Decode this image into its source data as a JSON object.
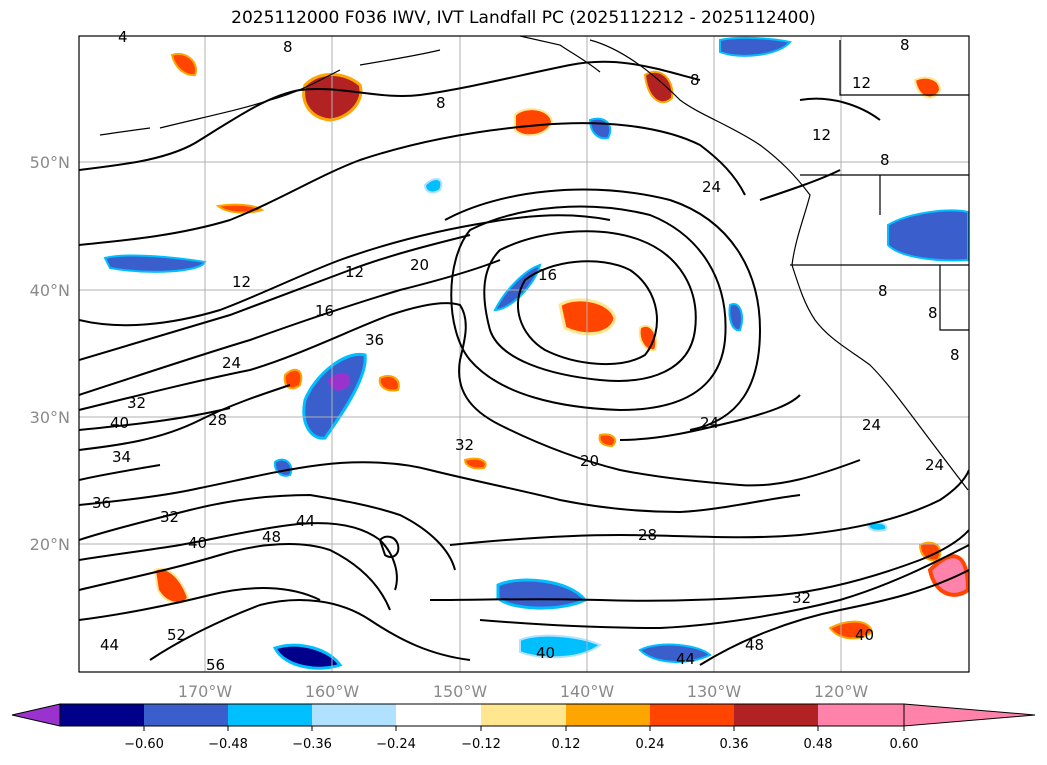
{
  "title": "2025112000 F036 IWV, IVT Landfall PC (2025112212 - 2025112400)",
  "lon_ticks": [
    "170°W",
    "160°W",
    "150°W",
    "140°W",
    "130°W",
    "120°W"
  ],
  "lat_ticks": [
    "50°N",
    "40°N",
    "30°N",
    "20°N"
  ],
  "contour_labels": [
    "4",
    "8",
    "8",
    "8",
    "12",
    "12",
    "12",
    "16",
    "12",
    "20",
    "16",
    "24",
    "24",
    "24",
    "36",
    "40",
    "28",
    "32",
    "20",
    "24",
    "34",
    "36",
    "32",
    "40",
    "32",
    "48",
    "44",
    "52",
    "56",
    "44",
    "40",
    "28",
    "32",
    "44",
    "48",
    "40",
    "24",
    "8",
    "8",
    "8",
    "8",
    "8"
  ],
  "colorbar": {
    "ticks": [
      "−0.60",
      "−0.48",
      "−0.36",
      "−0.24",
      "−0.12",
      "0.12",
      "0.24",
      "0.36",
      "0.48",
      "0.60"
    ],
    "colors": [
      "#9a32cd",
      "#00008b",
      "#3a5fcd",
      "#00bfff",
      "#b0e2ff",
      "#ffffff",
      "#ffe68f",
      "#ffa500",
      "#ff4500",
      "#b22222",
      "#ff82ab"
    ]
  },
  "colors": {
    "frame": "#000000",
    "grid": "#b0b0b0",
    "contour": "#000000"
  }
}
